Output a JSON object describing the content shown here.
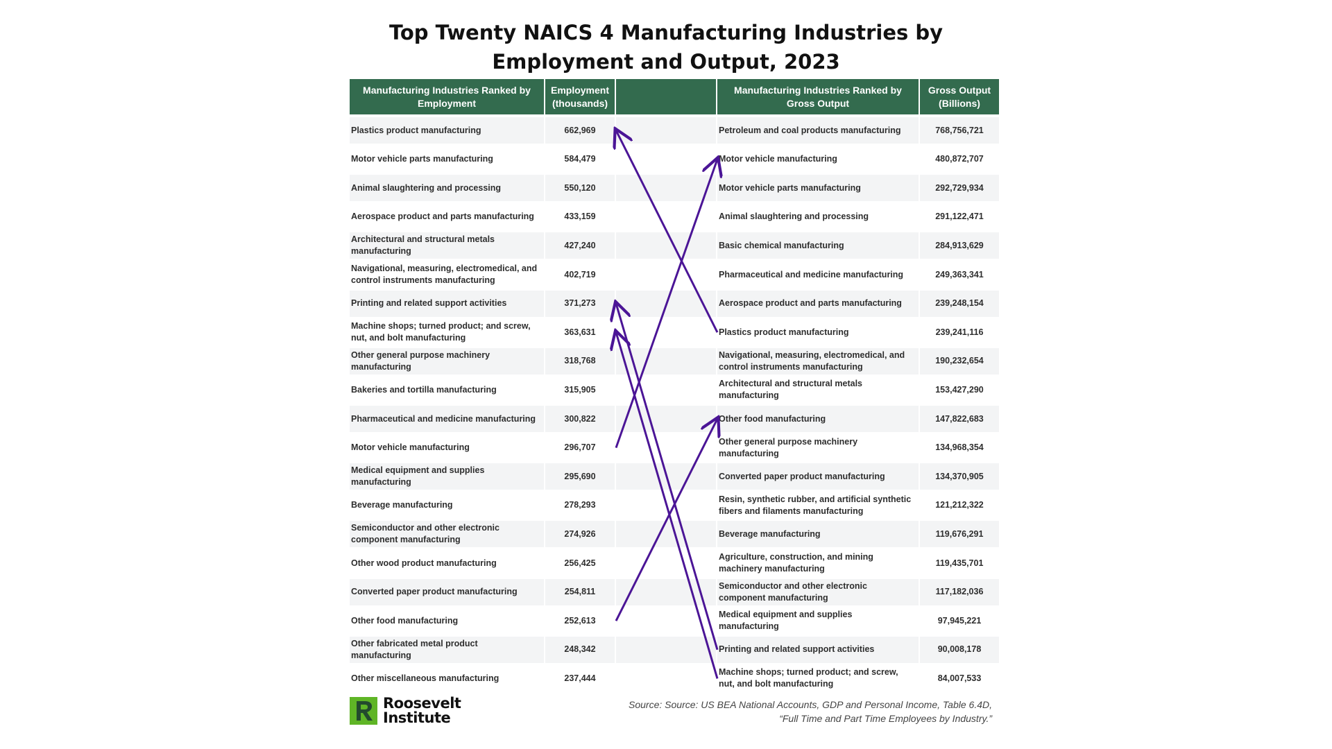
{
  "title": {
    "line1": "Top Twenty NAICS 4 Manufacturing Industries by",
    "line2": "Employment and Output, 2023"
  },
  "headers": {
    "employment_industry": "Manufacturing Industries Ranked by Employment",
    "employment": "Employment (thousands)",
    "output_industry": "Manufacturing Industries Ranked by Gross Output",
    "gross_output": "Gross Output (Billions)"
  },
  "colors": {
    "header_bg": "#336b4e",
    "arrow": "#4b1596",
    "logo_green": "#5fb526",
    "logo_dark": "#234a2e"
  },
  "chart_data": {
    "type": "table",
    "employment_ranking": [
      {
        "industry": "Plastics product manufacturing",
        "employment": "662,969"
      },
      {
        "industry": "Motor vehicle parts manufacturing",
        "employment": "584,479"
      },
      {
        "industry": "Animal slaughtering and processing",
        "employment": "550,120"
      },
      {
        "industry": "Aerospace product and parts manufacturing",
        "employment": "433,159"
      },
      {
        "industry": "Architectural and structural metals manufacturing",
        "employment": "427,240"
      },
      {
        "industry": "Navigational, measuring, electromedical, and control instruments manufacturing",
        "employment": "402,719"
      },
      {
        "industry": "Printing and related support activities",
        "employment": "371,273"
      },
      {
        "industry": "Machine shops; turned product; and screw, nut, and bolt manufacturing",
        "employment": "363,631"
      },
      {
        "industry": "Other general purpose machinery manufacturing",
        "employment": "318,768"
      },
      {
        "industry": "Bakeries and tortilla manufacturing",
        "employment": "315,905"
      },
      {
        "industry": "Pharmaceutical and medicine manufacturing",
        "employment": "300,822"
      },
      {
        "industry": "Motor vehicle manufacturing",
        "employment": "296,707"
      },
      {
        "industry": "Medical equipment and supplies manufacturing",
        "employment": "295,690"
      },
      {
        "industry": "Beverage manufacturing",
        "employment": "278,293"
      },
      {
        "industry": "Semiconductor and other electronic component manufacturing",
        "employment": "274,926"
      },
      {
        "industry": "Other wood product manufacturing",
        "employment": "256,425"
      },
      {
        "industry": "Converted paper product manufacturing",
        "employment": "254,811"
      },
      {
        "industry": "Other food manufacturing",
        "employment": "252,613"
      },
      {
        "industry": "Other fabricated metal product manufacturing",
        "employment": "248,342"
      },
      {
        "industry": "Other miscellaneous manufacturing",
        "employment": "237,444"
      }
    ],
    "output_ranking": [
      {
        "industry": "Petroleum and coal products manufacturing",
        "gross_output": "768,756,721"
      },
      {
        "industry": "Motor vehicle manufacturing",
        "gross_output": "480,872,707"
      },
      {
        "industry": "Motor vehicle parts manufacturing",
        "gross_output": "292,729,934"
      },
      {
        "industry": "Animal slaughtering and processing",
        "gross_output": "291,122,471"
      },
      {
        "industry": "Basic chemical manufacturing",
        "gross_output": "284,913,629"
      },
      {
        "industry": "Pharmaceutical and medicine manufacturing",
        "gross_output": "249,363,341"
      },
      {
        "industry": "Aerospace product and parts manufacturing",
        "gross_output": "239,248,154"
      },
      {
        "industry": "Plastics product manufacturing",
        "gross_output": "239,241,116"
      },
      {
        "industry": "Navigational, measuring, electromedical, and control instruments manufacturing",
        "gross_output": "190,232,654"
      },
      {
        "industry": "Architectural and structural metals manufacturing",
        "gross_output": "153,427,290"
      },
      {
        "industry": "Other food manufacturing",
        "gross_output": "147,822,683"
      },
      {
        "industry": "Other general purpose machinery manufacturing",
        "gross_output": "134,968,354"
      },
      {
        "industry": "Converted paper product manufacturing",
        "gross_output": "134,370,905"
      },
      {
        "industry": "Resin, synthetic rubber, and artificial synthetic fibers and filaments manufacturing",
        "gross_output": "121,212,322"
      },
      {
        "industry": "Beverage manufacturing",
        "gross_output": "119,676,291"
      },
      {
        "industry": "Agriculture, construction, and mining machinery manufacturing",
        "gross_output": "119,435,701"
      },
      {
        "industry": "Semiconductor and other electronic component manufacturing",
        "gross_output": "117,182,036"
      },
      {
        "industry": "Medical equipment and supplies manufacturing",
        "gross_output": "97,945,221"
      },
      {
        "industry": "Printing and related support activities",
        "gross_output": "90,008,178"
      },
      {
        "industry": "Machine shops; turned product; and screw, nut, and bolt manufacturing",
        "gross_output": "84,007,533"
      }
    ],
    "arrows": [
      {
        "from": "output rank 8 (Plastics product manufacturing)",
        "to": "employment rank 1",
        "from_side": "output",
        "from_rank": 8,
        "to_side": "employment",
        "to_rank": 1
      },
      {
        "from": "employment rank 12 (Motor vehicle manufacturing)",
        "to": "output rank 2",
        "from_side": "employment",
        "from_rank": 12,
        "to_side": "output",
        "to_rank": 2
      },
      {
        "from": "output rank 19 (Printing and related support activities)",
        "to": "employment rank 7",
        "from_side": "output",
        "from_rank": 19,
        "to_side": "employment",
        "to_rank": 7
      },
      {
        "from": "output rank 20 (Machine shops; turned product; and screw, nut, and bolt manufacturing)",
        "to": "employment rank 8",
        "from_side": "output",
        "from_rank": 20,
        "to_side": "employment",
        "to_rank": 8
      },
      {
        "from": "employment rank 18 (Other food manufacturing)",
        "to": "output rank 11",
        "from_side": "employment",
        "from_rank": 18,
        "to_side": "output",
        "to_rank": 11
      }
    ]
  },
  "logo": {
    "line1": "Roosevelt",
    "line2": "Institute"
  },
  "source": {
    "line1": "Source: Source: US BEA National Accounts, GDP and Personal Income, Table 6.4D,",
    "line2": "“Full Time and Part Time Employees by Industry.”"
  }
}
